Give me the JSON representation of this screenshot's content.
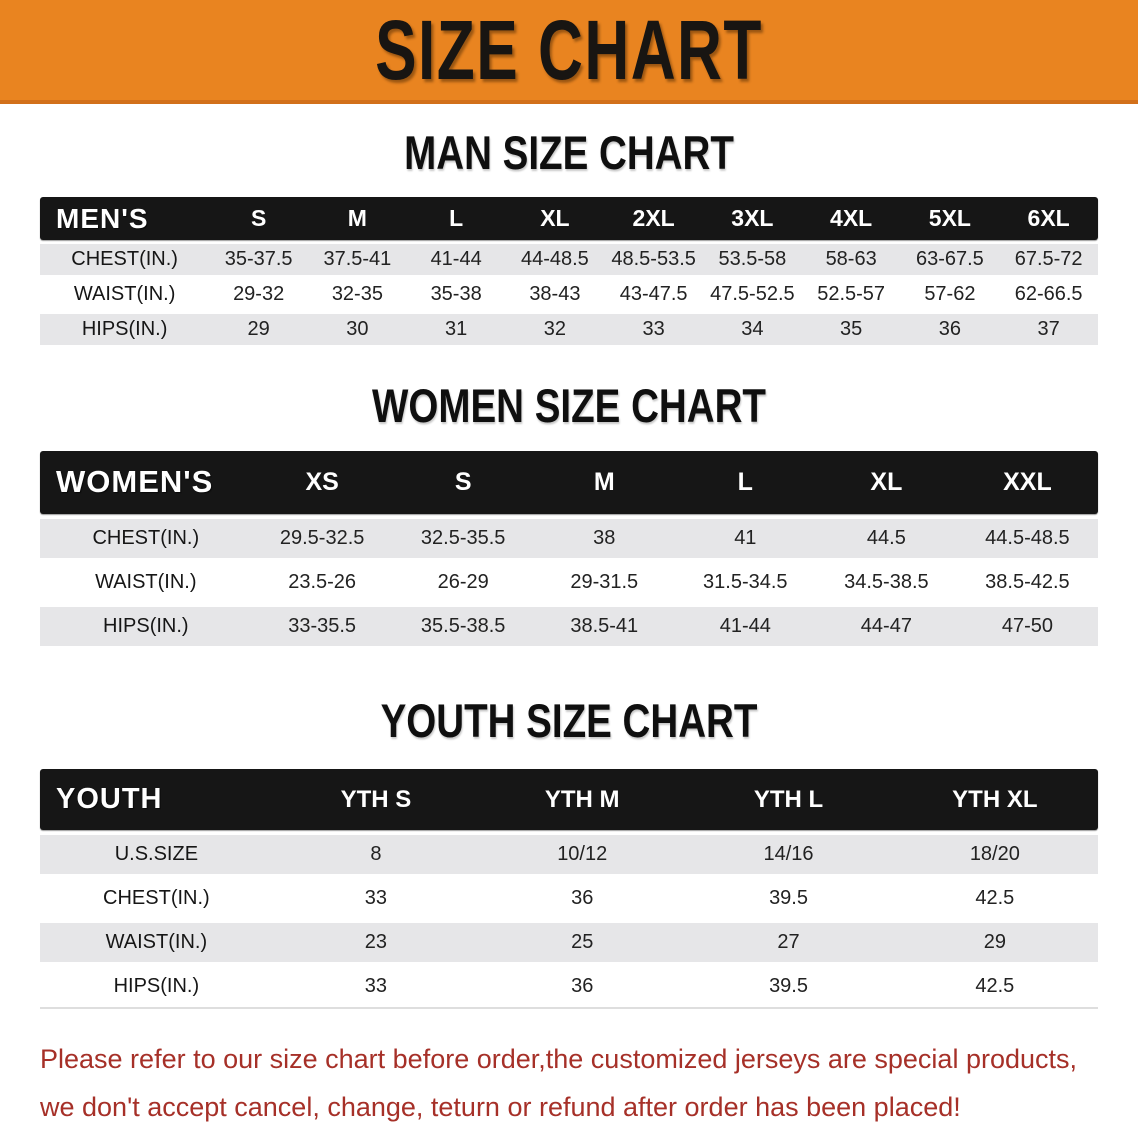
{
  "banner": {
    "title": "SIZE CHART",
    "bg": "#E98420"
  },
  "sections": [
    {
      "heading": "MAN SIZE CHART",
      "table": {
        "label": "MEN'S",
        "columns": [
          "S",
          "M",
          "L",
          "XL",
          "2XL",
          "3XL",
          "4XL",
          "5XL",
          "6XL"
        ],
        "rows": [
          {
            "label": "CHEST(IN.)",
            "values": [
              "35-37.5",
              "37.5-41",
              "41-44",
              "44-48.5",
              "48.5-53.5",
              "53.5-58",
              "58-63",
              "63-67.5",
              "67.5-72"
            ]
          },
          {
            "label": "WAIST(IN.)",
            "values": [
              "29-32",
              "32-35",
              "35-38",
              "38-43",
              "43-47.5",
              "47.5-52.5",
              "52.5-57",
              "57-62",
              "62-66.5"
            ]
          },
          {
            "label": "HIPS(IN.)",
            "values": [
              "29",
              "30",
              "31",
              "32",
              "33",
              "34",
              "35",
              "36",
              "37"
            ]
          }
        ]
      }
    },
    {
      "heading": "WOMEN SIZE CHART",
      "table": {
        "label": "WOMEN'S",
        "columns": [
          "XS",
          "S",
          "M",
          "L",
          "XL",
          "XXL"
        ],
        "rows": [
          {
            "label": "CHEST(IN.)",
            "values": [
              "29.5-32.5",
              "32.5-35.5",
              "38",
              "41",
              "44.5",
              "44.5-48.5"
            ]
          },
          {
            "label": "WAIST(IN.)",
            "values": [
              "23.5-26",
              "26-29",
              "29-31.5",
              "31.5-34.5",
              "34.5-38.5",
              "38.5-42.5"
            ]
          },
          {
            "label": "HIPS(IN.)",
            "values": [
              "33-35.5",
              "35.5-38.5",
              "38.5-41",
              "41-44",
              "44-47",
              "47-50"
            ]
          }
        ]
      }
    },
    {
      "heading": "YOUTH SIZE CHART",
      "table": {
        "label": "YOUTH",
        "columns": [
          "YTH S",
          "YTH M",
          "YTH L",
          "YTH XL"
        ],
        "rows": [
          {
            "label": "U.S.SIZE",
            "values": [
              "8",
              "10/12",
              "14/16",
              "18/20"
            ]
          },
          {
            "label": "CHEST(IN.)",
            "values": [
              "33",
              "36",
              "39.5",
              "42.5"
            ]
          },
          {
            "label": "WAIST(IN.)",
            "values": [
              "23",
              "25",
              "27",
              "29"
            ]
          },
          {
            "label": "HIPS(IN.)",
            "values": [
              "33",
              "36",
              "39.5",
              "42.5"
            ]
          }
        ]
      }
    }
  ],
  "footer": {
    "line1": "Please refer to our size chart before order,the customized jerseys are special products,",
    "line2": "we don't accept cancel, change, teturn or refund after order has been placed!",
    "color": "#A63028"
  }
}
